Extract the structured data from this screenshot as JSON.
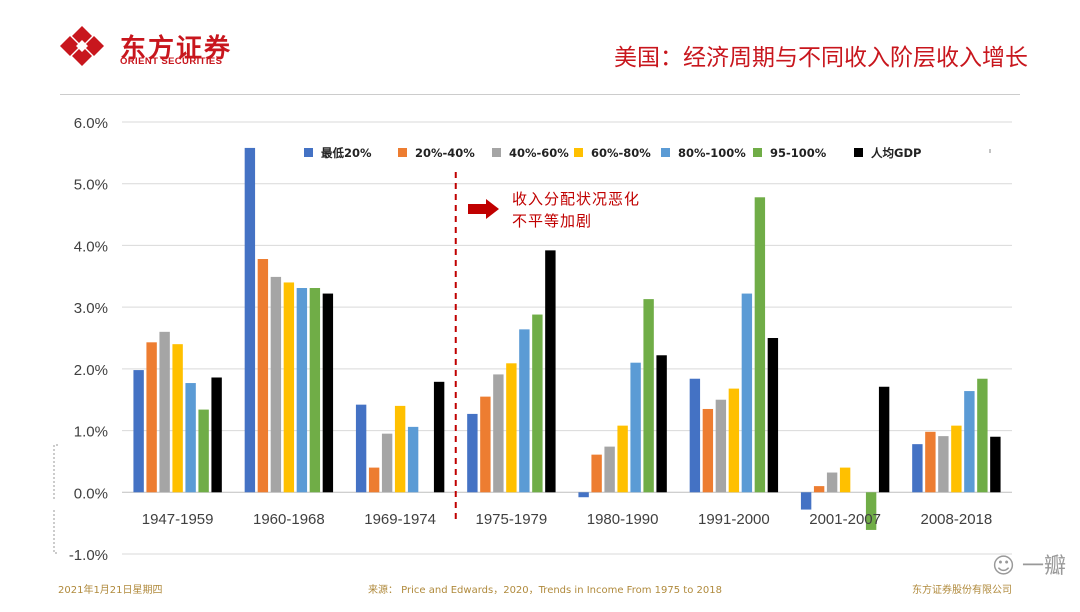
{
  "header": {
    "logo_cn": "东方证券",
    "logo_en": "ORIENT SECURITIES",
    "title": "美国：经济周期与不同收入阶层收入增长"
  },
  "footer": {
    "date": "2021年1月21日星期四",
    "source": "来源： Price and Edwards，2020，Trends in Income From 1975 to 2018",
    "company": "东方证券股份有限公司"
  },
  "annotation": {
    "line1": "收入分配状况恶化",
    "line2": "不平等加剧"
  },
  "watermark": "一瓣",
  "chart_data": {
    "type": "bar",
    "title": "",
    "xlabel": "",
    "ylabel": "",
    "ylim": [
      -1.0,
      6.0
    ],
    "yticks": [
      -1.0,
      0.0,
      1.0,
      2.0,
      3.0,
      4.0,
      5.0,
      6.0
    ],
    "ytick_labels": [
      "-1.0%",
      "0.0%",
      "1.0%",
      "2.0%",
      "3.0%",
      "4.0%",
      "5.0%",
      "6.0%"
    ],
    "grid": true,
    "legend_position": "top",
    "categories": [
      "1947-1959",
      "1960-1968",
      "1969-1974",
      "1975-1979",
      "1980-1990",
      "1991-2000",
      "2001-2007",
      "2008-2018"
    ],
    "series": [
      {
        "name": "最低20%",
        "color": "#4472c4",
        "values": [
          1.98,
          5.58,
          1.42,
          1.27,
          -0.08,
          1.84,
          -0.28,
          0.78
        ]
      },
      {
        "name": "20%-40%",
        "color": "#ed7d31",
        "values": [
          2.43,
          3.78,
          0.4,
          1.55,
          0.61,
          1.35,
          0.1,
          0.98
        ]
      },
      {
        "name": "40%-60%",
        "color": "#a5a5a5",
        "values": [
          2.6,
          3.49,
          0.95,
          1.91,
          0.74,
          1.5,
          0.32,
          0.91
        ]
      },
      {
        "name": "60%-80%",
        "color": "#ffc000",
        "values": [
          2.4,
          3.4,
          1.4,
          2.09,
          1.08,
          1.68,
          0.4,
          1.08
        ]
      },
      {
        "name": "80%-100%",
        "color": "#5b9bd5",
        "values": [
          1.77,
          3.31,
          1.06,
          2.64,
          2.1,
          3.22,
          0.0,
          1.64
        ]
      },
      {
        "name": "95-100%",
        "color": "#70ad47",
        "values": [
          1.34,
          3.31,
          0.0,
          2.88,
          3.13,
          4.78,
          -0.61,
          1.84
        ]
      },
      {
        "name": "人均GDP",
        "color": "#000000",
        "values": [
          1.86,
          3.22,
          1.79,
          3.92,
          2.22,
          2.5,
          1.71,
          0.9
        ]
      }
    ],
    "divider_after_category": "1969-1974"
  }
}
